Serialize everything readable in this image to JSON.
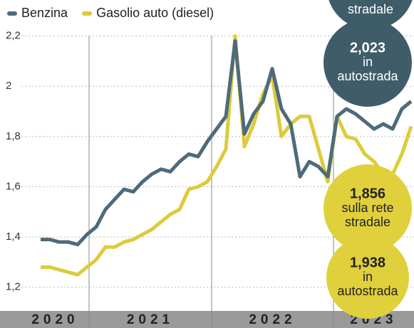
{
  "chart_data": {
    "type": "line",
    "legend": "top-left",
    "grid": true,
    "year_labels": [
      "2020",
      "2021",
      "2022",
      "2023"
    ],
    "ylim": [
      1.12,
      2.23
    ],
    "yticks": [
      {
        "value": 1.2,
        "label": "1,2"
      },
      {
        "value": 1.4,
        "label": "1,4"
      },
      {
        "value": 1.6,
        "label": "1,6"
      },
      {
        "value": 1.8,
        "label": "1,8"
      },
      2,
      {
        "value": 2.2,
        "label": "2,2"
      }
    ],
    "series": [
      {
        "name": "Benzina",
        "color": "#4d6b7b",
        "values": [
          1.39,
          1.39,
          1.38,
          1.38,
          1.37,
          1.41,
          1.44,
          1.51,
          1.55,
          1.59,
          1.58,
          1.62,
          1.65,
          1.67,
          1.66,
          1.7,
          1.73,
          1.72,
          1.78,
          1.83,
          1.88,
          2.18,
          1.81,
          1.89,
          1.94,
          2.07,
          1.91,
          1.85,
          1.64,
          1.7,
          1.68,
          1.64,
          1.88,
          1.91,
          1.89,
          1.86,
          1.83,
          1.85,
          1.83,
          1.91,
          1.94
        ]
      },
      {
        "name": "Gasolio auto (diesel)",
        "color": "#dccb3c",
        "values": [
          1.28,
          1.28,
          1.27,
          1.26,
          1.25,
          1.28,
          1.31,
          1.36,
          1.36,
          1.38,
          1.39,
          1.41,
          1.43,
          1.46,
          1.49,
          1.51,
          1.59,
          1.6,
          1.62,
          1.68,
          1.75,
          2.2,
          1.76,
          1.85,
          1.97,
          2.04,
          1.8,
          1.85,
          1.88,
          1.88,
          1.75,
          1.62,
          1.88,
          1.8,
          1.79,
          1.73,
          1.7,
          1.65,
          1.65,
          1.73,
          1.84
        ]
      }
    ],
    "annotations": [
      {
        "lines": [
          "stradale"
        ]
      },
      {
        "lines": [
          "2,023",
          "in",
          "autostrada"
        ]
      },
      {
        "lines": [
          "1,856",
          "sulla rete",
          "stradale"
        ]
      },
      {
        "lines": [
          "1,938",
          "in",
          "autostrada"
        ]
      }
    ]
  }
}
